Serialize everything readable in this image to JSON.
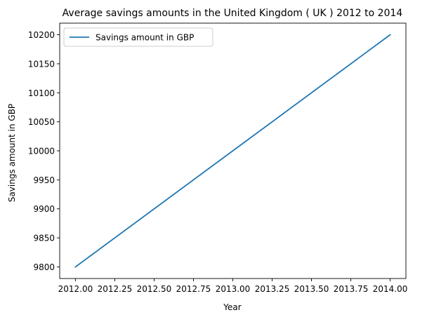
{
  "chart_data": {
    "type": "line",
    "title": "Average savings amounts in the United Kingdom ( UK ) 2012 to 2014",
    "xlabel": "Year",
    "ylabel": "Savings amount in GBP",
    "x": [
      2012,
      2013,
      2014
    ],
    "series": [
      {
        "name": "Savings amount in GBP",
        "values": [
          9800,
          10000,
          10200
        ],
        "color": "#1f77b4"
      }
    ],
    "xlim": [
      2011.9,
      2014.1
    ],
    "ylim": [
      9780,
      10220
    ],
    "xticks": [
      2012.0,
      2012.25,
      2012.5,
      2012.75,
      2013.0,
      2013.25,
      2013.5,
      2013.75,
      2014.0
    ],
    "xtick_labels": [
      "2012.00",
      "2012.25",
      "2012.50",
      "2012.75",
      "2013.00",
      "2013.25",
      "2013.50",
      "2013.75",
      "2014.00"
    ],
    "yticks": [
      9800,
      9850,
      9900,
      9950,
      10000,
      10050,
      10100,
      10150,
      10200
    ],
    "ytick_labels": [
      "9800",
      "9850",
      "9900",
      "9950",
      "10000",
      "10050",
      "10100",
      "10150",
      "10200"
    ],
    "grid": false,
    "legend_position": "top-left"
  }
}
